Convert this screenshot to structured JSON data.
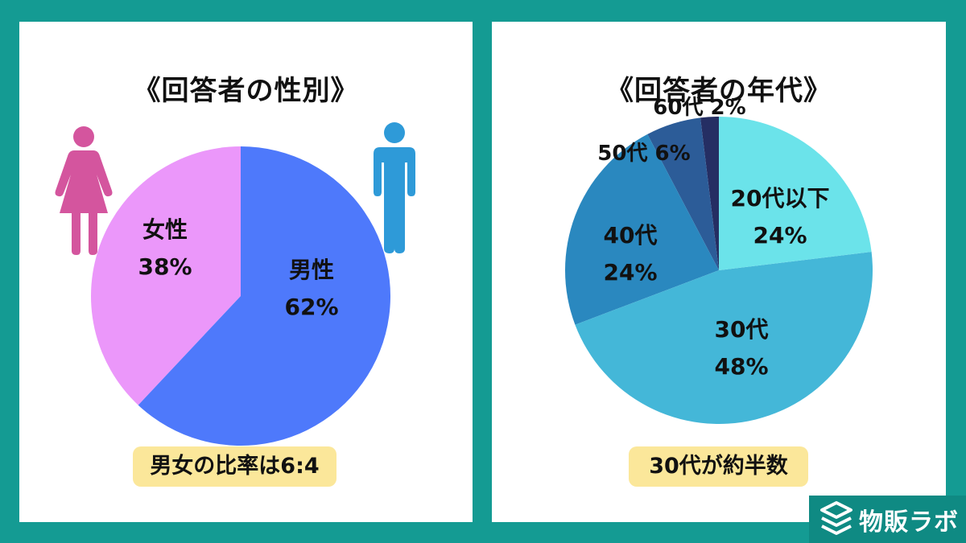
{
  "panels": {
    "left": {
      "title": "《回答者の性別》",
      "badge": "男女の比率は6:4"
    },
    "right": {
      "title": "《回答者の年代》",
      "badge": "30代が約半数"
    }
  },
  "chart_data": [
    {
      "type": "pie",
      "title": "《回答者の性別》",
      "start": "top, clockwise",
      "slices": [
        {
          "label": "男性",
          "value": 62,
          "value_label": "62%",
          "color": "#4e79fb"
        },
        {
          "label": "女性",
          "value": 38,
          "value_label": "38%",
          "color": "#eb97fa"
        }
      ],
      "icons": [
        {
          "name": "female-icon",
          "color": "#d4559e"
        },
        {
          "name": "male-icon",
          "color": "#2e9ad8"
        }
      ]
    },
    {
      "type": "pie",
      "title": "《回答者の年代》",
      "start": "top, clockwise",
      "slices": [
        {
          "label": "20代以下",
          "value": 24,
          "value_label": "24%",
          "color": "#6be3ea"
        },
        {
          "label": "30代",
          "value": 48,
          "value_label": "48%",
          "color": "#44b7d8"
        },
        {
          "label": "40代",
          "value": 24,
          "value_label": "24%",
          "color": "#2a88bf"
        },
        {
          "label": "50代",
          "value": 6,
          "value_label": "6%",
          "color": "#2c5c98"
        },
        {
          "label": "60代",
          "value": 2,
          "value_label": "2%",
          "color": "#252e63"
        }
      ]
    }
  ],
  "logo": {
    "text": "物販ラボ",
    "icon": "layers-icon"
  }
}
